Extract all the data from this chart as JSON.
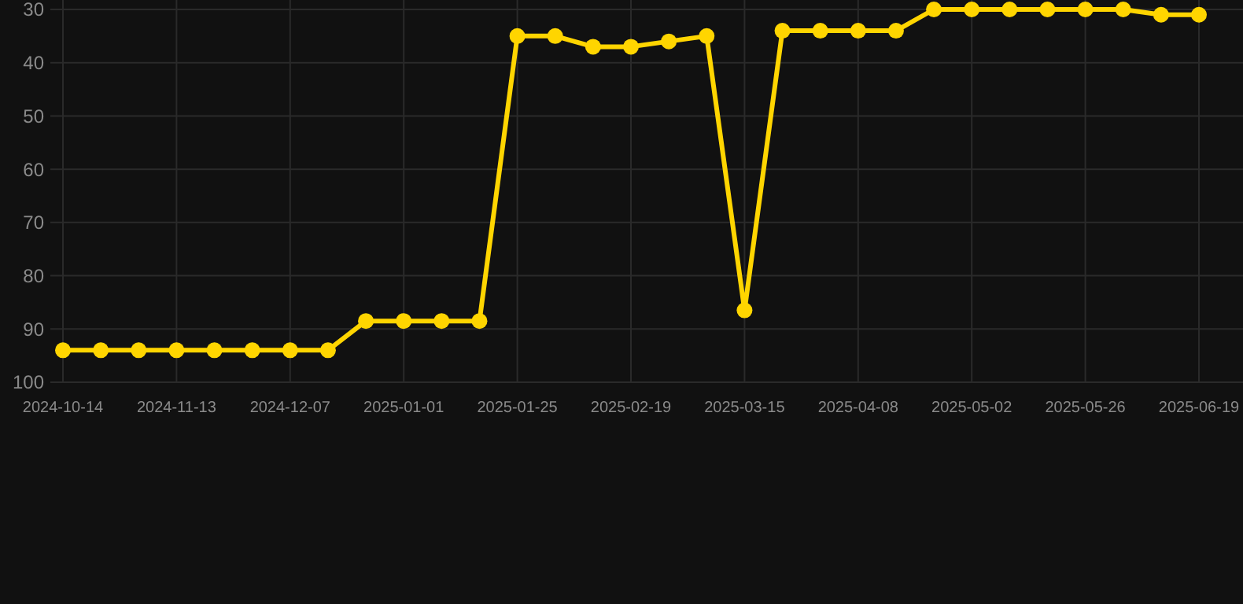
{
  "chart_data": {
    "type": "line",
    "categories": [
      "2024-10-14",
      null,
      null,
      "2024-11-13",
      null,
      null,
      "2024-12-07",
      null,
      null,
      "2025-01-01",
      null,
      null,
      "2025-01-25",
      null,
      null,
      "2025-02-19",
      null,
      null,
      "2025-03-15",
      null,
      null,
      "2025-04-08",
      null,
      null,
      "2025-05-02",
      null,
      null,
      "2025-05-26",
      null,
      null,
      "2025-06-19"
    ],
    "series": [
      {
        "color": "#ffd500",
        "values": [
          94,
          94,
          94,
          94,
          94,
          94,
          94,
          94,
          88.5,
          88.5,
          88.5,
          88.5,
          35,
          35,
          37,
          37,
          36,
          35,
          86.5,
          34,
          34,
          34,
          34,
          30,
          30,
          30,
          30,
          30,
          30,
          31,
          31
        ]
      }
    ],
    "ylim": [
      100,
      30
    ],
    "yticks": [
      30,
      40,
      50,
      60,
      70,
      80,
      90,
      100
    ],
    "grid": true,
    "marker": "circle",
    "line_style": "solid"
  }
}
